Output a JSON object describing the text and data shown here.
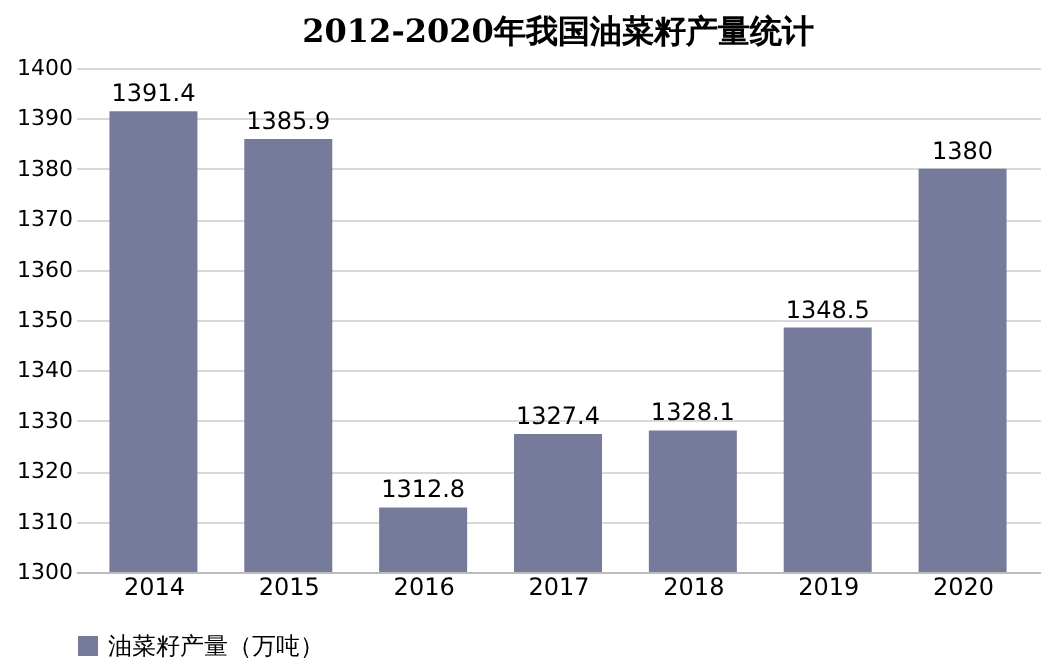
{
  "chart_data": {
    "type": "bar",
    "title": "2012-2020年我国油菜籽产量统计",
    "categories": [
      "2014",
      "2015",
      "2016",
      "2017",
      "2018",
      "2019",
      "2020"
    ],
    "series": [
      {
        "name": "油菜籽产量（万吨）",
        "color": "#767b9c",
        "values": [
          1391.4,
          1385.9,
          1312.8,
          1327.4,
          1328.1,
          1348.5,
          1380
        ]
      }
    ],
    "ylim": [
      1300,
      1400
    ],
    "yticks": [
      1300,
      1310,
      1320,
      1330,
      1340,
      1350,
      1360,
      1370,
      1380,
      1390,
      1400
    ],
    "grid": "y",
    "legend": "bottom",
    "data_labels": true
  }
}
